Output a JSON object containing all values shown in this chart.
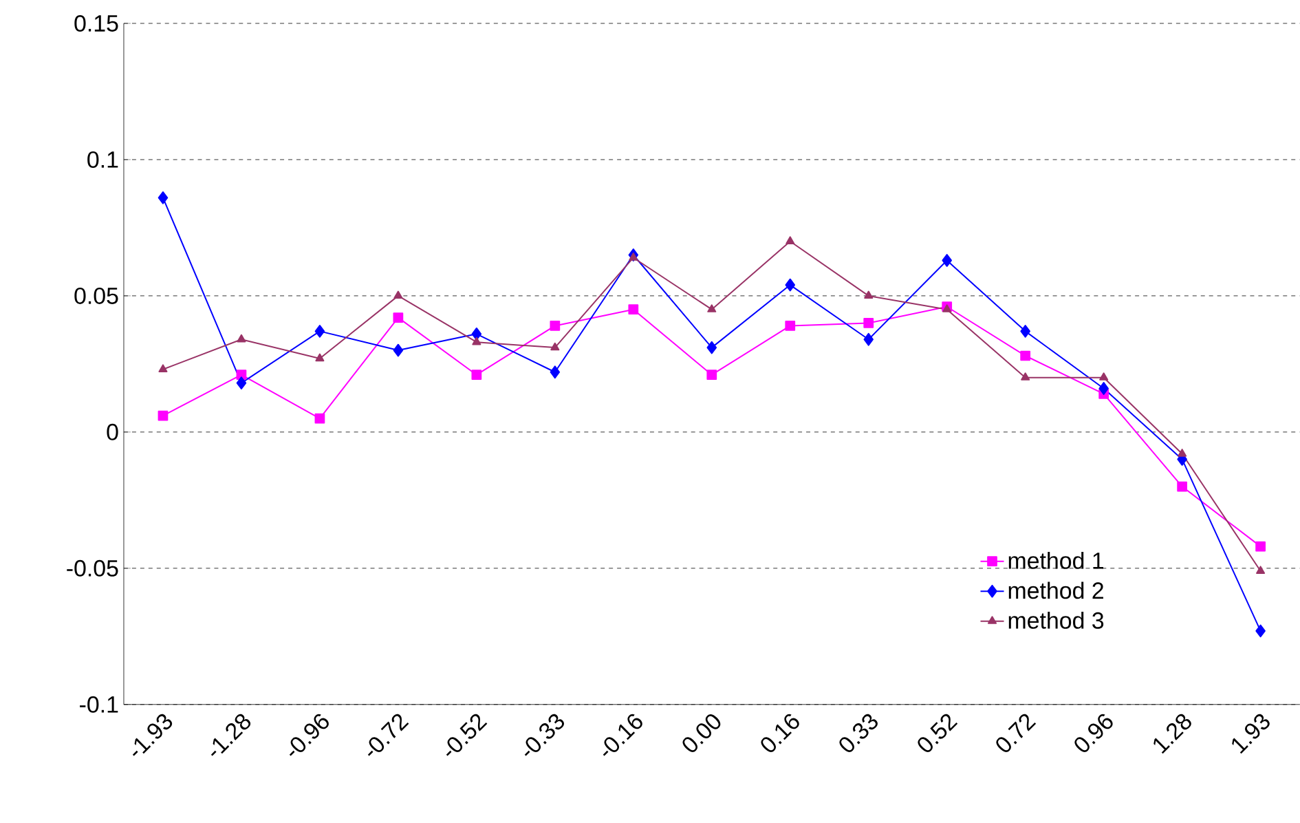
{
  "chart_data": {
    "type": "line",
    "categories": [
      "-1.93",
      "-1.28",
      "-0.96",
      "-0.72",
      "-0.52",
      "-0.33",
      "-0.16",
      "0.00",
      "0.16",
      "0.33",
      "0.52",
      "0.72",
      "0.96",
      "1.28",
      "1.93"
    ],
    "series": [
      {
        "name": "method 1",
        "color": "#ff00ff",
        "marker": "square",
        "values": [
          0.006,
          0.021,
          0.005,
          0.042,
          0.021,
          0.039,
          0.045,
          0.021,
          0.039,
          0.04,
          0.046,
          0.028,
          0.014,
          -0.02,
          -0.042
        ]
      },
      {
        "name": "method 2",
        "color": "#0000ff",
        "marker": "diamond",
        "values": [
          0.086,
          0.018,
          0.037,
          0.03,
          0.036,
          0.022,
          0.065,
          0.031,
          0.054,
          0.034,
          0.063,
          0.037,
          0.016,
          -0.01,
          -0.073
        ]
      },
      {
        "name": "method 3",
        "color": "#993366",
        "marker": "triangle",
        "values": [
          0.023,
          0.034,
          0.027,
          0.05,
          0.033,
          0.031,
          0.064,
          0.045,
          0.07,
          0.05,
          0.045,
          0.02,
          0.02,
          -0.008,
          -0.051
        ]
      }
    ],
    "ylim": [
      -0.1,
      0.15
    ],
    "yticks": [
      -0.1,
      -0.05,
      0,
      0.05,
      0.1,
      0.15
    ],
    "grid": "y",
    "legend": "bottom right",
    "line_style": "solid"
  }
}
